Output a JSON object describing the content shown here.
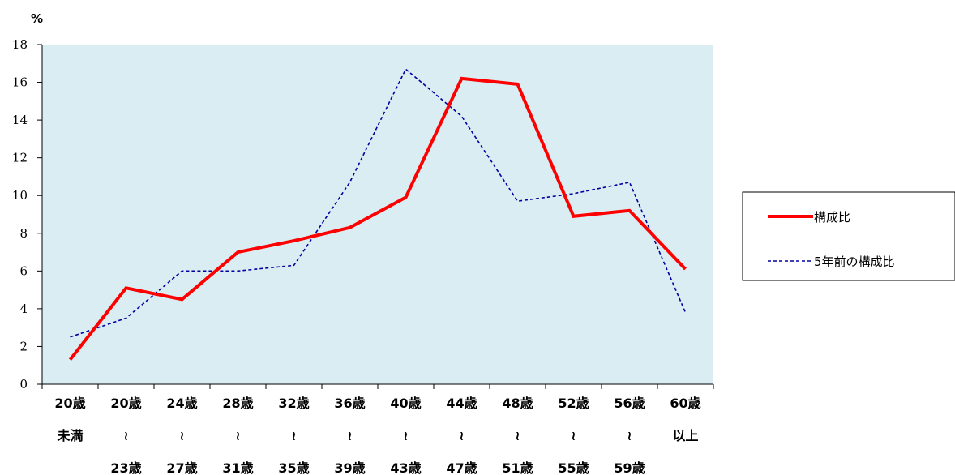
{
  "chart_data": {
    "type": "line",
    "title": "",
    "ylabel": "%",
    "xlabel": "",
    "ylim": [
      0,
      18
    ],
    "yticks": [
      0,
      2,
      4,
      6,
      8,
      10,
      12,
      14,
      16,
      18
    ],
    "categories": [
      [
        "20歳",
        "未満",
        ""
      ],
      [
        "20歳",
        "≀",
        "23歳"
      ],
      [
        "24歳",
        "≀",
        "27歳"
      ],
      [
        "28歳",
        "≀",
        "31歳"
      ],
      [
        "32歳",
        "≀",
        "35歳"
      ],
      [
        "36歳",
        "≀",
        "39歳"
      ],
      [
        "40歳",
        "≀",
        "43歳"
      ],
      [
        "44歳",
        "≀",
        "47歳"
      ],
      [
        "48歳",
        "≀",
        "51歳"
      ],
      [
        "52歳",
        "≀",
        "55歳"
      ],
      [
        "56歳",
        "≀",
        "59歳"
      ],
      [
        "60歳",
        "以上",
        ""
      ]
    ],
    "series": [
      {
        "name": "構成比",
        "color": "#ff0000",
        "style": "solid",
        "values": [
          1.3,
          5.1,
          4.5,
          7.0,
          7.6,
          8.3,
          9.9,
          16.2,
          15.9,
          8.9,
          9.2,
          6.1
        ]
      },
      {
        "name": "5年前の構成比",
        "color": "#0000a0",
        "style": "dashed",
        "values": [
          2.5,
          3.5,
          6.0,
          6.0,
          6.3,
          10.7,
          16.7,
          14.2,
          9.7,
          10.1,
          10.7,
          3.8
        ]
      }
    ],
    "plot_background": "#daedf2",
    "grid": false,
    "legend_position": "right"
  }
}
